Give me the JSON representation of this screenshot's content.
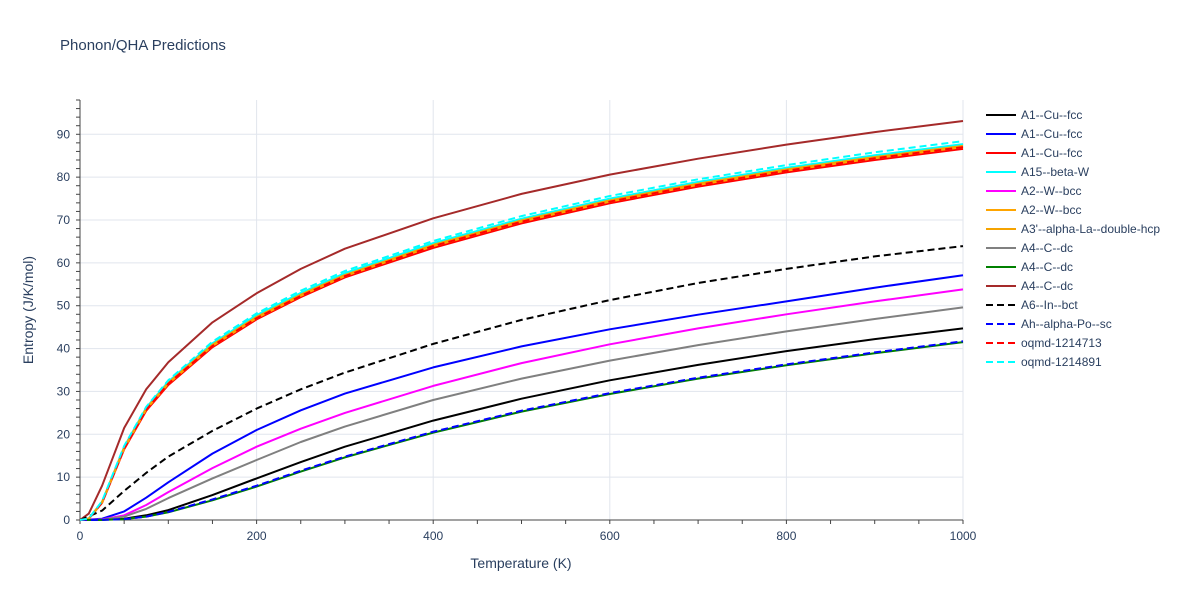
{
  "chart_data": {
    "type": "line",
    "title": "Phonon/QHA Predictions",
    "xlabel": "Temperature (K)",
    "ylabel": "Entropy (J/K/mol)",
    "xlim": [
      0,
      1000
    ],
    "ylim": [
      0,
      98
    ],
    "x_ticks": [
      0,
      200,
      400,
      600,
      800,
      1000
    ],
    "y_ticks": [
      0,
      10,
      20,
      30,
      40,
      50,
      60,
      70,
      80,
      90
    ],
    "grid": true,
    "legend_position": "right",
    "series": [
      {
        "name": "A1--Cu--fcc",
        "color": "#000000",
        "dash": "solid",
        "x": [
          0,
          25,
          50,
          75,
          100,
          150,
          200,
          250,
          300,
          400,
          500,
          600,
          700,
          800,
          900,
          1000
        ],
        "y": [
          0,
          0.05,
          0.3,
          1.1,
          2.3,
          5.8,
          9.7,
          13.5,
          17.1,
          23.2,
          28.3,
          32.6,
          36.2,
          39.4,
          42.2,
          44.7
        ]
      },
      {
        "name": "A1--Cu--fcc",
        "color": "#0000ff",
        "dash": "solid",
        "x": [
          0,
          25,
          50,
          75,
          100,
          150,
          200,
          250,
          300,
          400,
          500,
          600,
          700,
          800,
          900,
          1000
        ],
        "y": [
          0,
          0.3,
          2.0,
          5.2,
          8.8,
          15.5,
          21.0,
          25.6,
          29.5,
          35.6,
          40.5,
          44.5,
          47.9,
          51.0,
          54.2,
          57.1
        ]
      },
      {
        "name": "A1--Cu--fcc",
        "color": "#ff0000",
        "dash": "solid",
        "x": [
          0,
          10,
          25,
          50,
          75,
          100,
          150,
          200,
          250,
          300,
          400,
          500,
          600,
          700,
          800,
          900,
          1000
        ],
        "y": [
          0,
          0.3,
          4.0,
          16.5,
          25.5,
          31.5,
          40.3,
          46.8,
          52.0,
          56.6,
          63.5,
          69.2,
          73.9,
          77.8,
          81.1,
          84.0,
          86.6
        ]
      },
      {
        "name": "A15--beta-W",
        "color": "#00ffff",
        "dash": "solid",
        "x": [
          0,
          10,
          25,
          50,
          75,
          100,
          150,
          200,
          250,
          300,
          400,
          500,
          600,
          700,
          800,
          900,
          1000
        ],
        "y": [
          0,
          0.35,
          4.3,
          17.1,
          26.2,
          32.3,
          41.2,
          47.8,
          53.0,
          57.6,
          64.6,
          70.3,
          75.0,
          78.9,
          82.2,
          85.1,
          87.7
        ]
      },
      {
        "name": "A2--W--bcc",
        "color": "#ff00ff",
        "dash": "solid",
        "x": [
          0,
          25,
          50,
          75,
          100,
          150,
          200,
          250,
          300,
          400,
          500,
          600,
          700,
          800,
          900,
          1000
        ],
        "y": [
          0,
          0.15,
          1.1,
          3.5,
          6.5,
          12.1,
          17.1,
          21.3,
          25.0,
          31.3,
          36.6,
          41.0,
          44.7,
          48.0,
          51.0,
          53.8
        ]
      },
      {
        "name": "A2--W--bcc",
        "color": "#ffa500",
        "dash": "solid",
        "x": [
          0,
          10,
          25,
          50,
          75,
          100,
          150,
          200,
          250,
          300,
          400,
          500,
          600,
          700,
          800,
          900,
          1000
        ],
        "y": [
          0,
          0.3,
          4.1,
          16.7,
          25.8,
          31.8,
          40.6,
          47.1,
          52.3,
          56.9,
          63.9,
          69.6,
          74.3,
          78.2,
          81.5,
          84.4,
          87.0
        ]
      },
      {
        "name": "A3'--alpha-La--double-hcp",
        "color": "#f5a300",
        "dash": "solid",
        "x": [
          0,
          10,
          25,
          50,
          75,
          100,
          150,
          200,
          250,
          300,
          400,
          500,
          600,
          700,
          800,
          900,
          1000
        ],
        "y": [
          0,
          0.3,
          4.2,
          16.9,
          26.0,
          32.0,
          40.9,
          47.4,
          52.6,
          57.2,
          64.2,
          69.9,
          74.6,
          78.5,
          81.8,
          84.7,
          87.3
        ]
      },
      {
        "name": "A4--C--dc",
        "color": "#808080",
        "dash": "solid",
        "x": [
          0,
          25,
          50,
          75,
          100,
          150,
          200,
          250,
          300,
          400,
          500,
          600,
          700,
          800,
          900,
          1000
        ],
        "y": [
          0,
          0.1,
          0.8,
          2.6,
          5.1,
          9.7,
          14.0,
          18.2,
          21.8,
          28.0,
          33.0,
          37.2,
          40.8,
          44.0,
          46.9,
          49.6
        ]
      },
      {
        "name": "A4--C--dc",
        "color": "#008000",
        "dash": "solid",
        "x": [
          0,
          25,
          50,
          75,
          100,
          150,
          200,
          250,
          300,
          400,
          500,
          600,
          700,
          800,
          900,
          1000
        ],
        "y": [
          0,
          0.02,
          0.2,
          0.8,
          1.8,
          4.6,
          7.8,
          11.3,
          14.6,
          20.4,
          25.3,
          29.4,
          33.0,
          36.1,
          38.9,
          41.5
        ]
      },
      {
        "name": "A4--C--dc",
        "color": "#a52a2a",
        "dash": "solid",
        "x": [
          0,
          10,
          25,
          50,
          75,
          100,
          150,
          200,
          250,
          300,
          400,
          500,
          600,
          700,
          800,
          900,
          1000
        ],
        "y": [
          0,
          1.5,
          8.0,
          21.5,
          30.5,
          36.8,
          46.1,
          52.9,
          58.6,
          63.3,
          70.4,
          76.1,
          80.6,
          84.3,
          87.6,
          90.5,
          93.1
        ]
      },
      {
        "name": "A6--In--bct",
        "color": "#000000",
        "dash": "dash",
        "x": [
          0,
          25,
          50,
          75,
          100,
          150,
          200,
          250,
          300,
          400,
          500,
          600,
          700,
          800,
          900,
          1000
        ],
        "y": [
          0,
          2.2,
          6.8,
          11.0,
          14.8,
          20.8,
          26.0,
          30.5,
          34.4,
          41.1,
          46.7,
          51.3,
          55.3,
          58.6,
          61.5,
          63.9
        ]
      },
      {
        "name": "Ah--alpha-Po--sc",
        "color": "#0000ff",
        "dash": "dash",
        "x": [
          0,
          25,
          50,
          75,
          100,
          150,
          200,
          250,
          300,
          400,
          500,
          600,
          700,
          800,
          900,
          1000
        ],
        "y": [
          0,
          0.02,
          0.2,
          0.8,
          1.9,
          4.8,
          8.0,
          11.5,
          14.8,
          20.6,
          25.5,
          29.6,
          33.2,
          36.3,
          39.1,
          41.7
        ]
      },
      {
        "name": "oqmd-1214713",
        "color": "#ff0000",
        "dash": "dash",
        "x": [
          0,
          10,
          25,
          50,
          75,
          100,
          150,
          200,
          250,
          300,
          400,
          500,
          600,
          700,
          800,
          900,
          1000
        ],
        "y": [
          0,
          0.3,
          4.1,
          16.7,
          25.8,
          31.8,
          40.6,
          47.1,
          52.3,
          56.9,
          63.9,
          69.6,
          74.3,
          78.2,
          81.5,
          84.4,
          87.0
        ]
      },
      {
        "name": "oqmd-1214891",
        "color": "#00ffff",
        "dash": "dash",
        "x": [
          0,
          10,
          25,
          50,
          75,
          100,
          150,
          200,
          250,
          300,
          400,
          500,
          600,
          700,
          800,
          900,
          1000
        ],
        "y": [
          0,
          0.35,
          4.4,
          17.3,
          26.4,
          32.6,
          41.6,
          48.2,
          53.5,
          58.1,
          65.1,
          70.9,
          75.6,
          79.5,
          82.8,
          85.8,
          88.4
        ]
      }
    ]
  }
}
